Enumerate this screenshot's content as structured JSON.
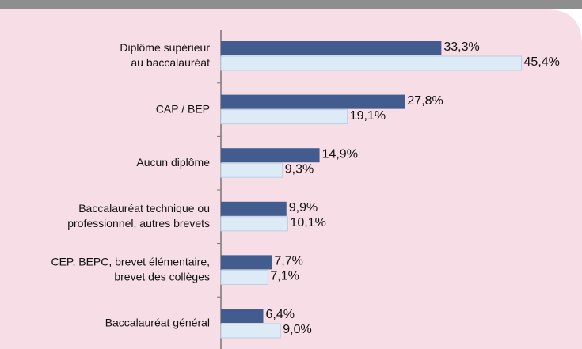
{
  "chart_data": {
    "type": "barh",
    "categories": [
      [
        "Diplôme supérieur",
        "au baccalauréat"
      ],
      [
        "CAP / BEP"
      ],
      [
        "Aucun diplôme"
      ],
      [
        "Baccalauréat technique ou",
        "professionnel, autres brevets"
      ],
      [
        "CEP, BEPC, brevet élémentaire,",
        "brevet des collèges"
      ],
      [
        "Baccalauréat général"
      ]
    ],
    "series": [
      {
        "color": "#435c8f",
        "values": [
          33.3,
          27.8,
          14.9,
          9.9,
          7.7,
          6.4
        ],
        "value_labels": [
          "33,3%",
          "27,8%",
          "14,9%",
          "9,9%",
          "7,7%",
          "6,4%"
        ]
      },
      {
        "color": "#dcebf5",
        "values": [
          45.4,
          19.1,
          9.3,
          10.1,
          7.1,
          9.0
        ],
        "value_labels": [
          "45,4%",
          "19,1%",
          "9,3%",
          "10,1%",
          "7,1%",
          "9,0%"
        ]
      }
    ],
    "xlim": [
      0,
      50
    ]
  }
}
